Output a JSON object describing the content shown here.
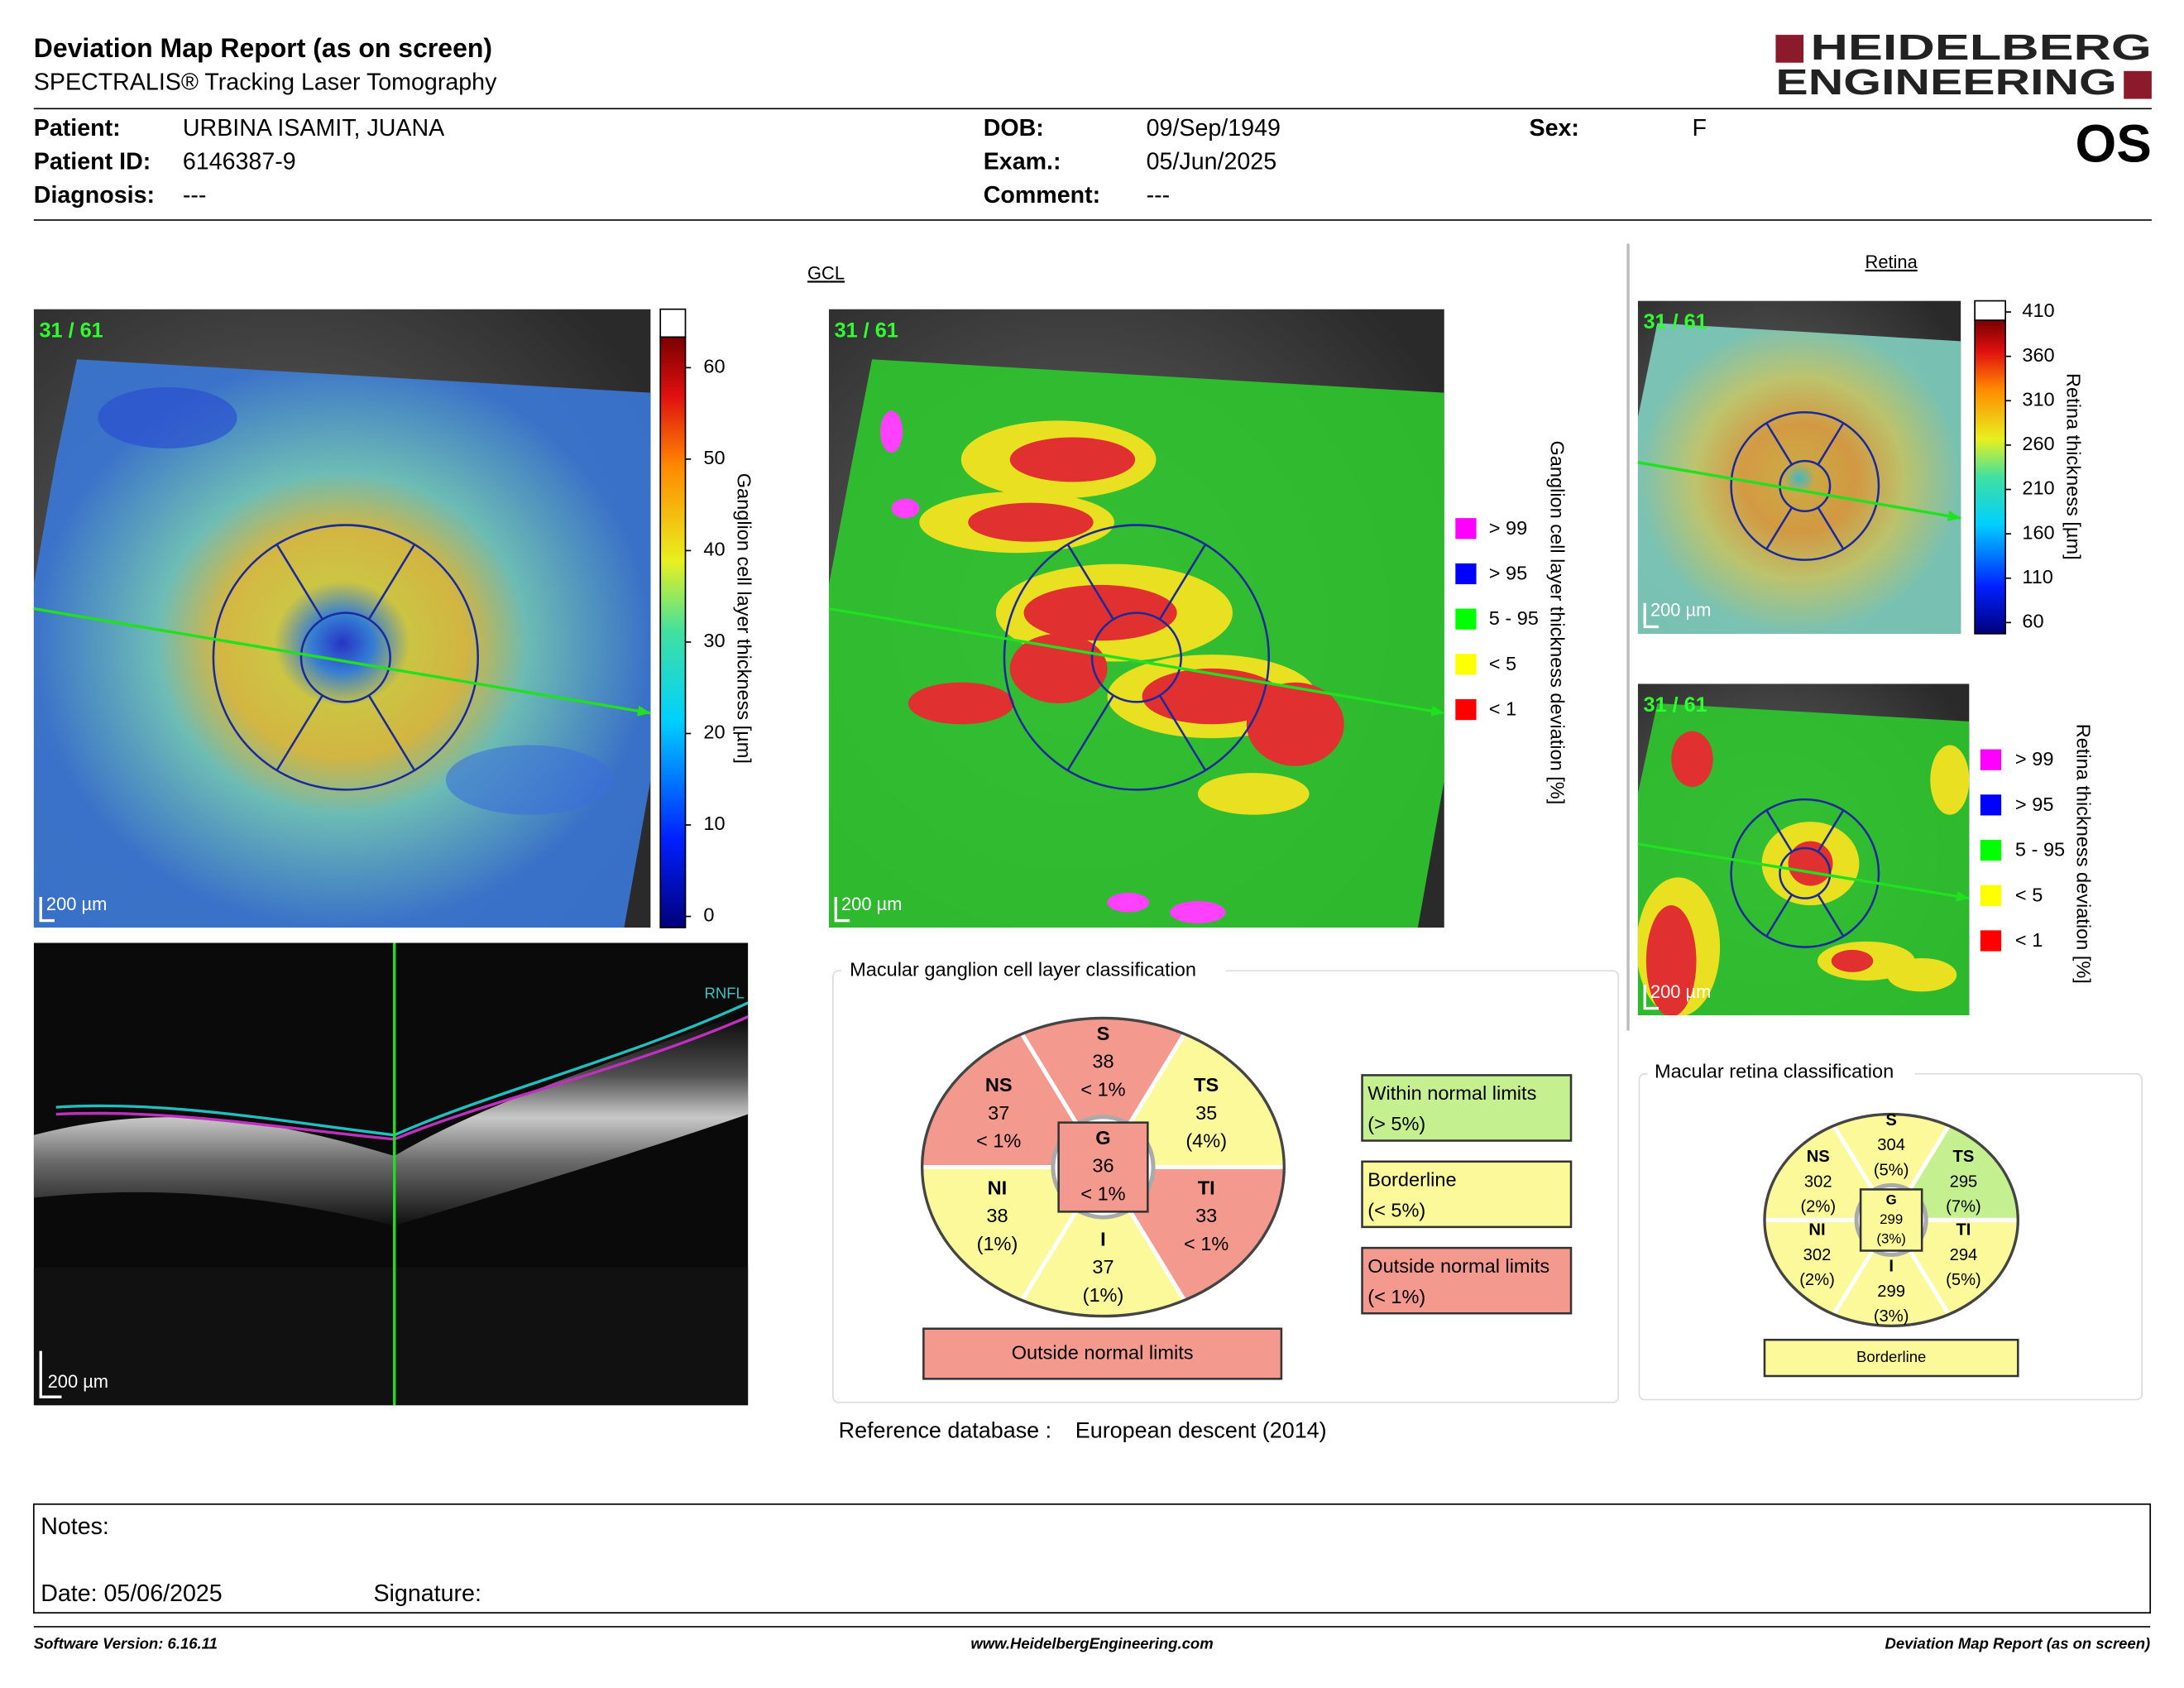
{
  "header": {
    "title": "Deviation Map Report (as on screen)",
    "subtitle": "SPECTRALIS® Tracking Laser Tomography",
    "logo": [
      "HEIDELBERG",
      "ENGINEERING"
    ],
    "eye": "OS"
  },
  "patient": {
    "fields": [
      {
        "label": "Patient:",
        "value": "URBINA ISAMIT, JUANA"
      },
      {
        "label": "Patient ID:",
        "value": "6146387-9"
      },
      {
        "label": "Diagnosis:",
        "value": "---"
      },
      {
        "label": "DOB:",
        "value": "09/Sep/1949"
      },
      {
        "label": "Exam.:",
        "value": "05/Jun/2025"
      },
      {
        "label": "Comment:",
        "value": "---"
      },
      {
        "label": "Sex:",
        "value": "F"
      }
    ]
  },
  "gcl": {
    "title": "GCL",
    "thickness_map": {
      "scan": "31 / 61",
      "scale": "200 µm",
      "colorbar": {
        "ticks": [
          0,
          10,
          20,
          30,
          40,
          50,
          60
        ],
        "label": "Ganglion cell layer thickness [µm]"
      }
    },
    "deviation_map": {
      "scan": "31 / 61",
      "scale": "200 µm",
      "label": "Ganglion cell layer thickness deviation [%]",
      "legend": [
        {
          "label": "> 99",
          "color": "#ff00ff"
        },
        {
          "label": "> 95",
          "color": "#0000ff"
        },
        {
          "label": "5 - 95",
          "color": "#00ff00"
        },
        {
          "label": "< 5",
          "color": "#ffff00"
        },
        {
          "label": "< 1",
          "color": "#ff0000"
        }
      ]
    },
    "bscan": {
      "layer": "RNFL",
      "scale": "200 µm"
    },
    "classification": {
      "title": "Macular ganglion cell layer classification",
      "sectors": [
        {
          "name": "S",
          "value": 38,
          "percent": "< 1%",
          "color": "#f4998e"
        },
        {
          "name": "NS",
          "value": 37,
          "percent": "< 1%",
          "color": "#f4998e"
        },
        {
          "name": "TS",
          "value": 35,
          "percent": "(4%)",
          "color": "#fbf99a"
        },
        {
          "name": "G",
          "value": 36,
          "percent": "< 1%",
          "color": "#f4998e"
        },
        {
          "name": "NI",
          "value": 38,
          "percent": "(1%)",
          "color": "#fbf99a"
        },
        {
          "name": "TI",
          "value": 33,
          "percent": "< 1%",
          "color": "#f4998e"
        },
        {
          "name": "I",
          "value": 37,
          "percent": "(1%)",
          "color": "#fbf99a"
        }
      ],
      "result": "Outside normal limits",
      "result_color": "#f4998e"
    }
  },
  "classification_legend": [
    {
      "label": "Within normal limits",
      "range": "(> 5%)",
      "color": "#c4f08f"
    },
    {
      "label": "Borderline",
      "range": "(< 5%)",
      "color": "#fbf99a"
    },
    {
      "label": "Outside normal limits",
      "range": "(< 1%)",
      "color": "#f4998e"
    }
  ],
  "reference": {
    "label": "Reference database :",
    "value": "European descent (2014)"
  },
  "retina": {
    "title": "Retina",
    "thickness_map": {
      "scan": "31 / 61",
      "scale": "200 µm",
      "colorbar": {
        "ticks": [
          60,
          110,
          160,
          210,
          260,
          310,
          360,
          410
        ],
        "label": "Retina thickness [µm]"
      }
    },
    "deviation_map": {
      "scan": "31 / 61",
      "scale": "200 µm",
      "label": "Retina thickness deviation [%]",
      "legend": [
        {
          "label": "> 99",
          "color": "#ff00ff"
        },
        {
          "label": "> 95",
          "color": "#0000ff"
        },
        {
          "label": "5 - 95",
          "color": "#00ff00"
        },
        {
          "label": "< 5",
          "color": "#ffff00"
        },
        {
          "label": "< 1",
          "color": "#ff0000"
        }
      ]
    },
    "classification": {
      "title": "Macular retina classification",
      "sectors": [
        {
          "name": "S",
          "value": 304,
          "percent": "(5%)",
          "color": "#fbf99a"
        },
        {
          "name": "NS",
          "value": 302,
          "percent": "(2%)",
          "color": "#fbf99a"
        },
        {
          "name": "TS",
          "value": 295,
          "percent": "(7%)",
          "color": "#c4f08f"
        },
        {
          "name": "G",
          "value": 299,
          "percent": "(3%)",
          "color": "#fbf99a"
        },
        {
          "name": "NI",
          "value": 302,
          "percent": "(2%)",
          "color": "#fbf99a"
        },
        {
          "name": "TI",
          "value": 294,
          "percent": "(5%)",
          "color": "#fbf99a"
        },
        {
          "name": "I",
          "value": 299,
          "percent": "(3%)",
          "color": "#fbf99a"
        }
      ],
      "result": "Borderline",
      "result_color": "#fbf99a"
    }
  },
  "notes": {
    "label": "Notes:",
    "date": "Date: 05/06/2025",
    "signature": "Signature:"
  },
  "footer": {
    "left": "Software Version: 6.16.11",
    "center": "www.HeidelbergEngineering.com",
    "right": "Deviation Map Report (as on screen)"
  }
}
